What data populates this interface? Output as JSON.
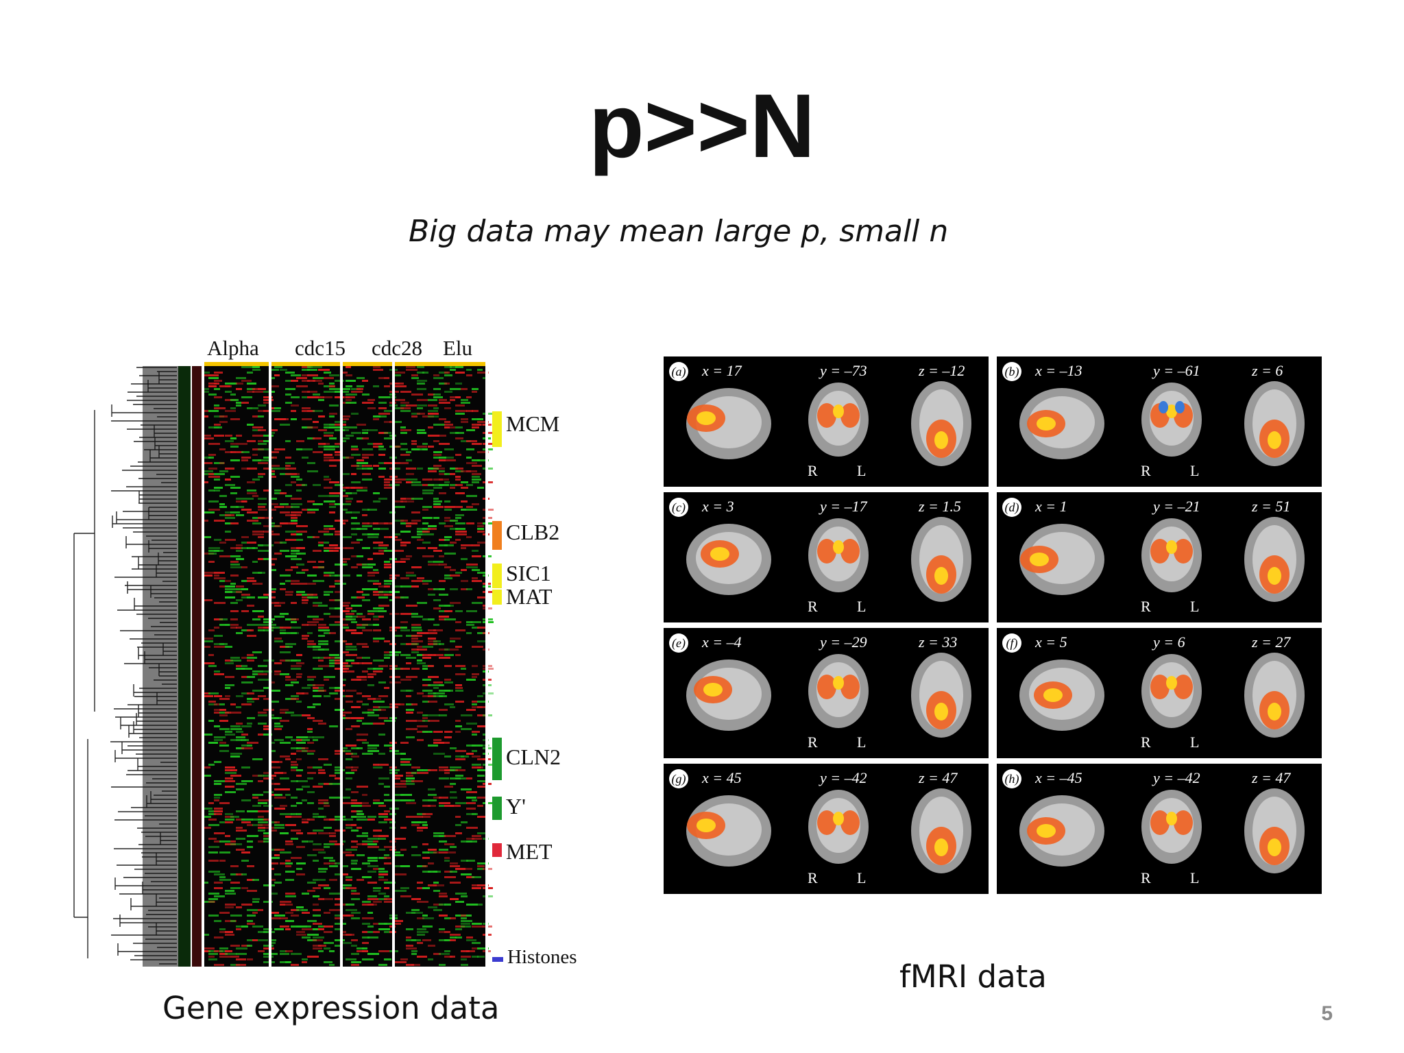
{
  "slide": {
    "title": "p>>N",
    "subtitle": "Big data may mean large p, small n",
    "page_number": "5"
  },
  "gene_figure": {
    "caption": "Gene expression data",
    "column_groups": [
      "Alpha",
      "cdc15",
      "cdc28",
      "Elu"
    ],
    "clusters": [
      {
        "label": "MCM",
        "color": "#f2ee1c"
      },
      {
        "label": "CLB2",
        "color": "#f07f1e"
      },
      {
        "label": "SIC1",
        "color": "#f2ee1c"
      },
      {
        "label": "MAT",
        "color": "#f2ee1c"
      },
      {
        "label": "CLN2",
        "color": "#1d9a2e"
      },
      {
        "label": "Y'",
        "color": "#1d9a2e"
      },
      {
        "label": "MET",
        "color": "#e0283a"
      },
      {
        "label": "Histones",
        "color": "#3b3bd0"
      }
    ]
  },
  "fmri_figure": {
    "caption": "fMRI data",
    "panels": [
      {
        "id": "a",
        "x": "x = 17",
        "y": "y = –73",
        "z": "z = –12"
      },
      {
        "id": "b",
        "x": "x = –13",
        "y": "y = –61",
        "z": "z = 6"
      },
      {
        "id": "c",
        "x": "x = 3",
        "y": "y = –17",
        "z": "z = 1.5"
      },
      {
        "id": "d",
        "x": "x = 1",
        "y": "y = –21",
        "z": "z = 51"
      },
      {
        "id": "e",
        "x": "x = –4",
        "y": "y = –29",
        "z": "z = 33"
      },
      {
        "id": "f",
        "x": "x = 5",
        "y": "y = 6",
        "z": "z = 27"
      },
      {
        "id": "g",
        "x": "x = 45",
        "y": "y = –42",
        "z": "z = 47"
      },
      {
        "id": "h",
        "x": "x = –45",
        "y": "y = –42",
        "z": "z = 47"
      }
    ],
    "orientation_right": "R",
    "orientation_left": "L"
  }
}
